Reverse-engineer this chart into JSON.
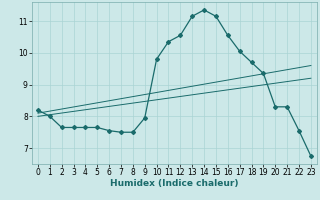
{
  "xlabel": "Humidex (Indice chaleur)",
  "background_color": "#cce8e8",
  "line_color": "#1a6b6b",
  "xlim": [
    -0.5,
    23.5
  ],
  "ylim": [
    6.5,
    11.6
  ],
  "yticks": [
    7,
    8,
    9,
    10,
    11
  ],
  "xticks": [
    0,
    1,
    2,
    3,
    4,
    5,
    6,
    7,
    8,
    9,
    10,
    11,
    12,
    13,
    14,
    15,
    16,
    17,
    18,
    19,
    20,
    21,
    22,
    23
  ],
  "series": [
    [
      0,
      8.2
    ],
    [
      1,
      8.0
    ],
    [
      2,
      7.65
    ],
    [
      3,
      7.65
    ],
    [
      4,
      7.65
    ],
    [
      5,
      7.65
    ],
    [
      6,
      7.55
    ],
    [
      7,
      7.5
    ],
    [
      8,
      7.5
    ],
    [
      9,
      7.95
    ],
    [
      10,
      9.8
    ],
    [
      11,
      10.35
    ],
    [
      12,
      10.55
    ],
    [
      13,
      11.15
    ],
    [
      14,
      11.35
    ],
    [
      15,
      11.15
    ],
    [
      16,
      10.55
    ],
    [
      17,
      10.05
    ],
    [
      18,
      9.7
    ],
    [
      19,
      9.35
    ],
    [
      20,
      8.3
    ],
    [
      21,
      8.3
    ],
    [
      22,
      7.55
    ],
    [
      23,
      6.75
    ]
  ],
  "linear1": [
    [
      0,
      8.1
    ],
    [
      23,
      9.6
    ]
  ],
  "linear2": [
    [
      0,
      8.0
    ],
    [
      23,
      9.2
    ]
  ],
  "grid_color": "#aad4d4",
  "tick_fontsize": 5.5,
  "label_fontsize": 6.5,
  "marker_size": 2.0,
  "line_width": 0.9
}
